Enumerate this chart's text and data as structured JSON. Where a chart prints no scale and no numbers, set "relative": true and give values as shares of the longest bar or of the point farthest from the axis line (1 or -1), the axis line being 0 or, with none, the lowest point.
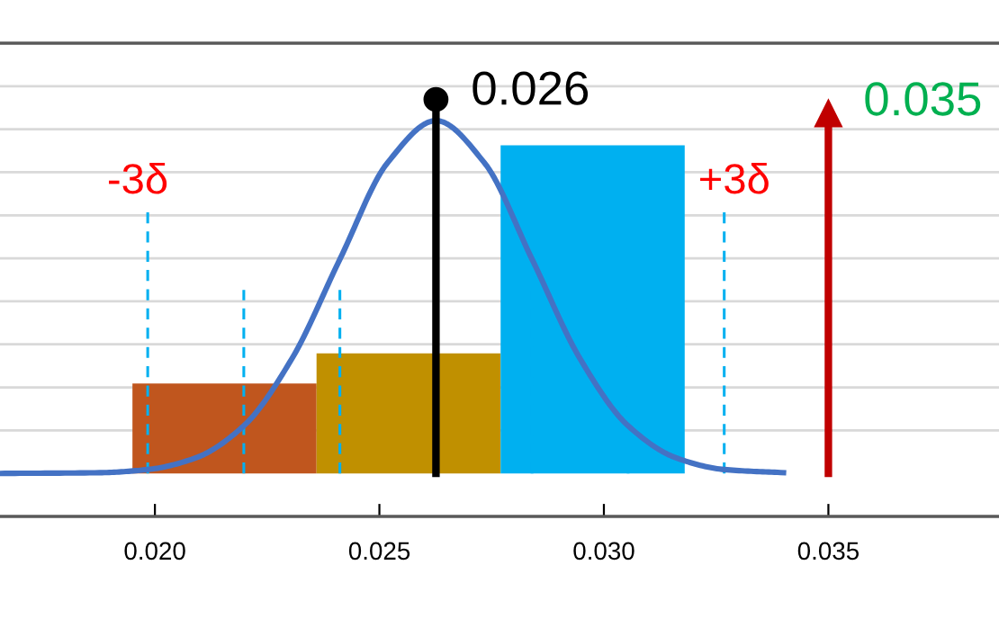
{
  "chart_data": {
    "type": "histogram",
    "relative": true,
    "bins": [
      0.0195,
      0.0236,
      0.0277,
      0.0318
    ],
    "values": [
      0.255,
      0.34,
      0.93
    ],
    "colors": [
      "#c0561e",
      "#c09000",
      "#00b0f0"
    ],
    "series": [
      {
        "type": "line",
        "color": "#4472c4",
        "x": [
          0.01655,
          0.01877,
          0.01984,
          0.02091,
          0.02198,
          0.02305,
          0.02412,
          0.02519,
          0.02626,
          0.02733,
          0.0284,
          0.02947,
          0.03054,
          0.03161,
          0.03268,
          0.034
        ],
        "values": [
          0,
          0.002,
          0.011,
          0.044,
          0.135,
          0.325,
          0.607,
          0.882,
          1,
          0.882,
          0.607,
          0.325,
          0.135,
          0.044,
          0.011,
          0.002
        ]
      }
    ],
    "xlim": [
      0.01655,
      0.0388
    ],
    "xticks": [
      {
        "value": 0.02,
        "label": "0.020"
      },
      {
        "value": 0.025,
        "label": "0.025"
      },
      {
        "value": 0.03,
        "label": "0.030"
      },
      {
        "value": 0.035,
        "label": "0.035"
      }
    ],
    "grid": "y",
    "ref_lines": [
      {
        "axis": "x",
        "value": 0.01984,
        "color": "#00b0f0",
        "line_style": "dashed"
      },
      {
        "axis": "x",
        "value": 0.02198,
        "color": "#00b0f0",
        "line_style": "dashed"
      },
      {
        "axis": "x",
        "value": 0.02412,
        "color": "#00b0f0",
        "line_style": "dashed"
      },
      {
        "axis": "x",
        "value": 0.02626,
        "color": "#000000",
        "line_style": "solid"
      },
      {
        "axis": "x",
        "value": 0.0284,
        "color": "#00b0f0",
        "line_style": "dashed"
      },
      {
        "axis": "x",
        "value": 0.03054,
        "color": "#00b0f0",
        "line_style": "dashed"
      },
      {
        "axis": "x",
        "value": 0.03268,
        "color": "#00b0f0",
        "line_style": "dashed"
      },
      {
        "axis": "x",
        "value": 0.035,
        "color": "#c00000",
        "line_style": "solid",
        "label": "0.035"
      }
    ],
    "annotations": [
      {
        "text": "-3δ",
        "x": 0.01984,
        "y": 0.74
      },
      {
        "text": "+3δ",
        "x": 0.03268,
        "y": 0.74
      },
      {
        "text": "0.026",
        "x": 0.02626,
        "y": 1.06
      }
    ]
  }
}
